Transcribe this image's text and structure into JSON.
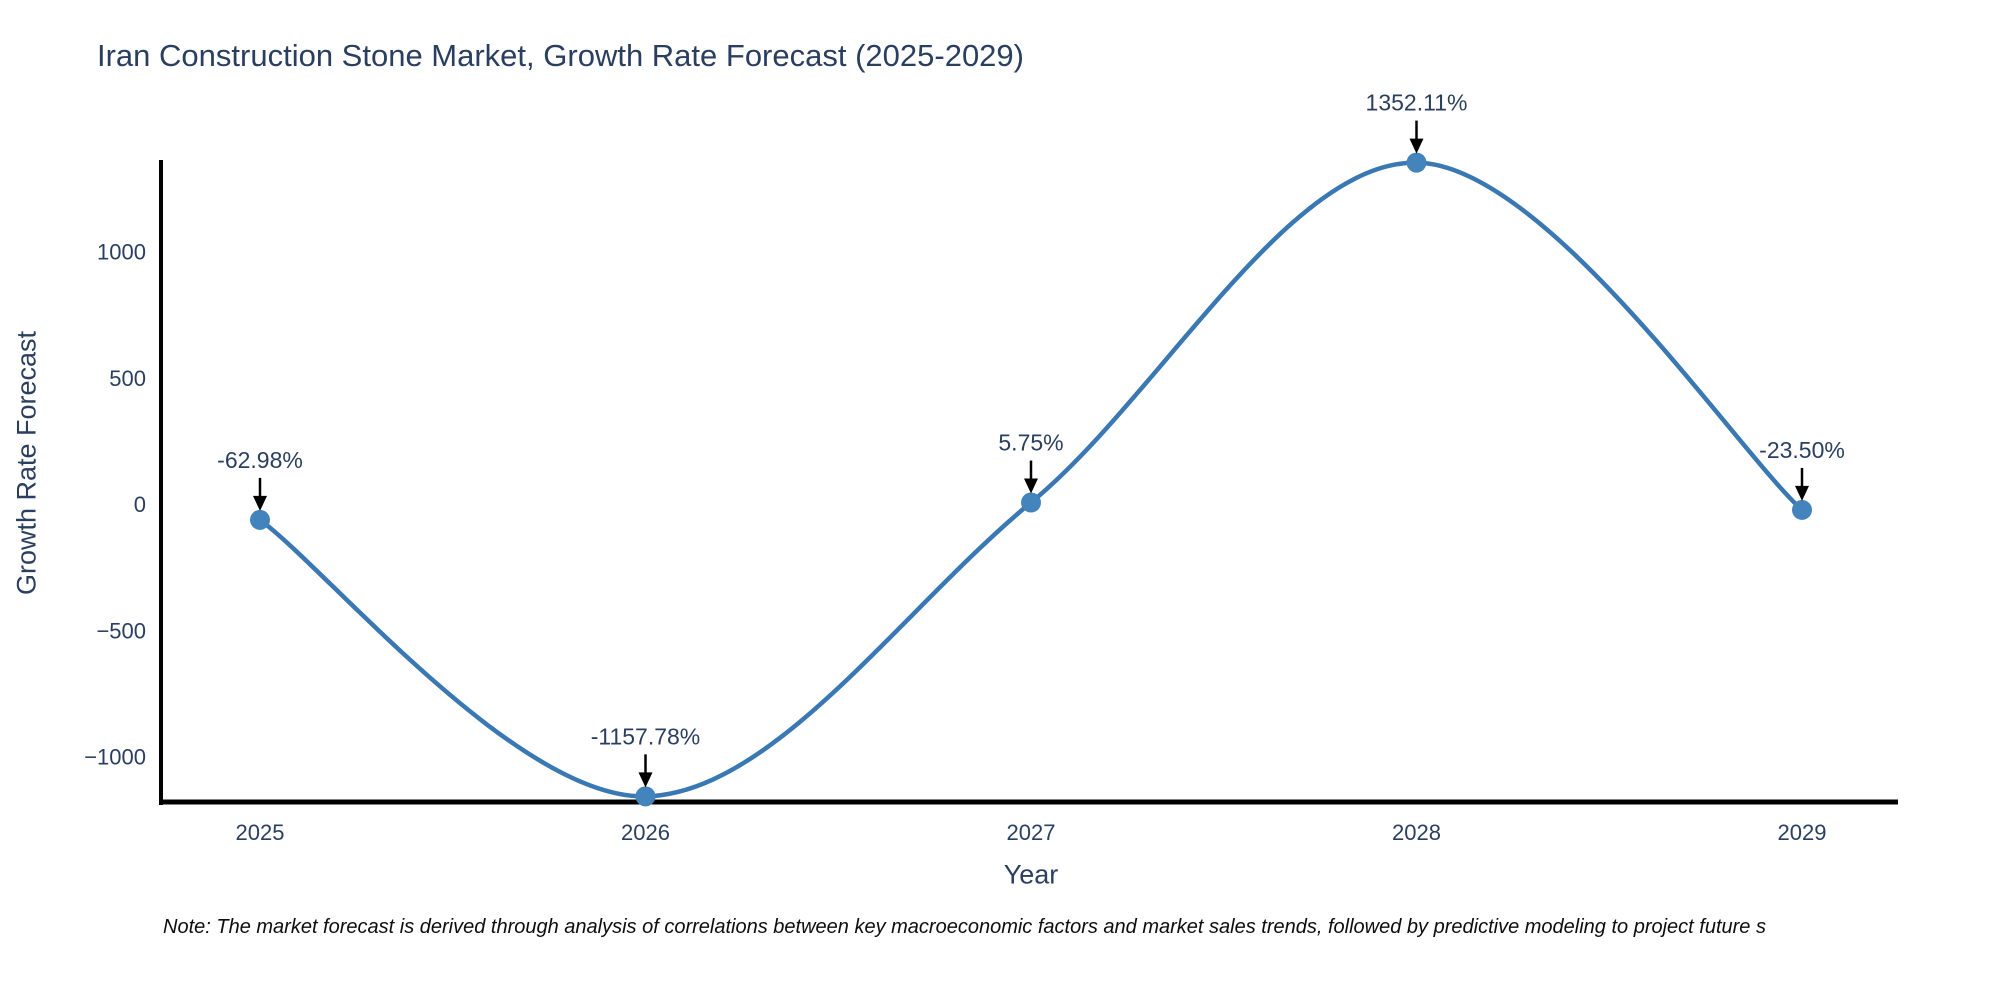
{
  "chart": {
    "title": "Iran Construction Stone Market, Growth Rate Forecast (2025-2029)",
    "xlabel": "Year",
    "ylabel": "Growth Rate Forecast",
    "note": "Note: The market forecast is derived through analysis of correlations between key macroeconomic factors and market sales trends, followed by predictive modeling to project future s"
  },
  "chart_data": {
    "type": "line",
    "line_shape": "spline",
    "title": "Iran Construction Stone Market, Growth Rate Forecast (2025-2029)",
    "xlabel": "Year",
    "ylabel": "Growth Rate Forecast",
    "series": [
      {
        "name": "Growth Rate Forecast",
        "x": [
          2025,
          2026,
          2027,
          2028,
          2029
        ],
        "values": [
          -62.98,
          -1157.78,
          5.75,
          1352.11,
          -23.5
        ]
      }
    ],
    "x_tick_labels": [
      "2025",
      "2026",
      "2027",
      "2028",
      "2029"
    ],
    "y_ticks": [
      1000,
      500,
      0,
      -500,
      -1000
    ],
    "y_tick_labels": [
      "1000",
      "500",
      "0",
      "−500",
      "−1000"
    ],
    "ylim": [
      -1250,
      1370
    ],
    "grid": false,
    "legend": "none",
    "annotations": [
      "-62.98%",
      "-1157.78%",
      "5.75%",
      "1352.11%",
      "-23.50%"
    ],
    "colors": {
      "line": "#3a78b3",
      "marker": "#4484bc",
      "text": "#2a3f5f",
      "axis": "#000000",
      "arrow": "#000000"
    }
  }
}
